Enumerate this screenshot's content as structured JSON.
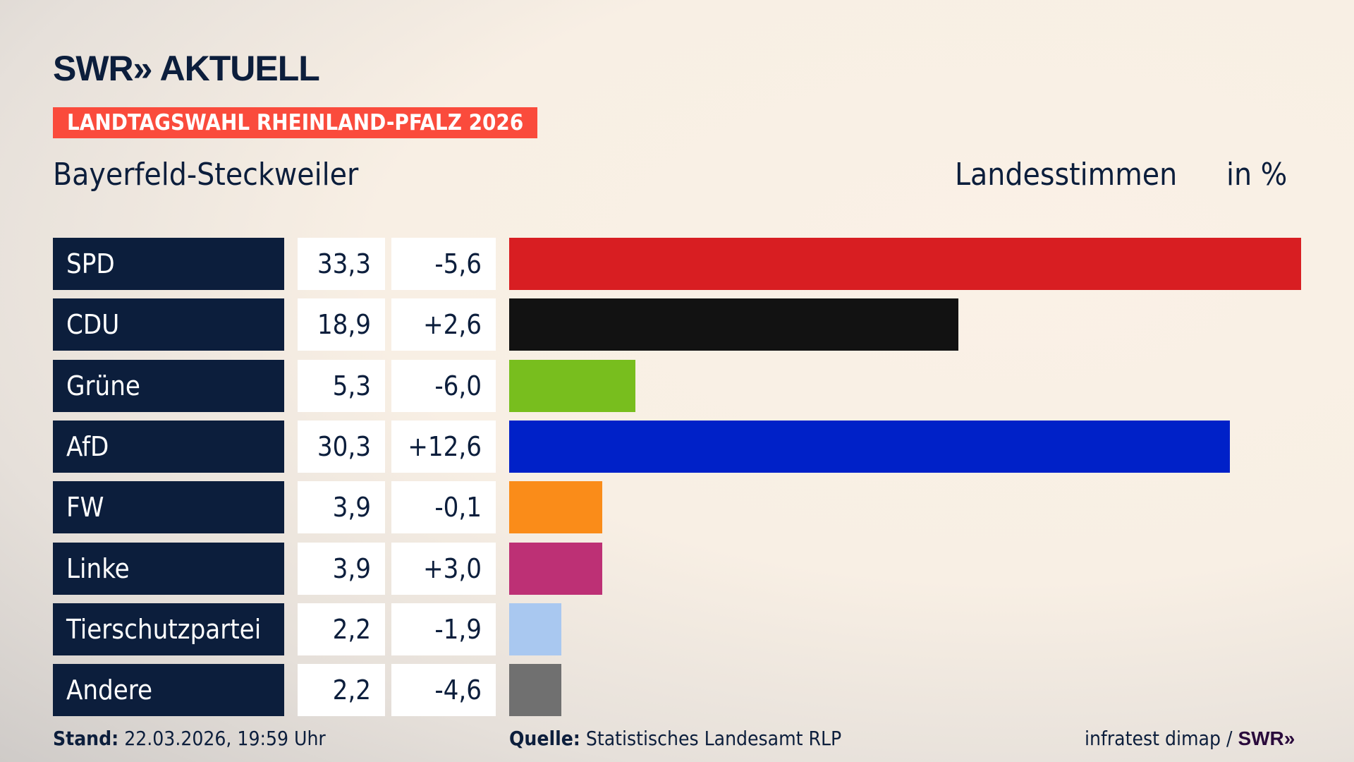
{
  "header": {
    "logo": "SWR» AKTUELL",
    "banner": "LANDTAGSWAHL RHEINLAND-PFALZ 2026",
    "place": "Bayerfeld-Steckweiler",
    "metric": "Landesstimmen",
    "unit": "in %"
  },
  "chart_data": {
    "type": "bar",
    "orientation": "horizontal",
    "xlim": [
      0,
      33.3
    ],
    "categories": [
      "SPD",
      "CDU",
      "Grüne",
      "AfD",
      "FW",
      "Linke",
      "Tierschutzpartei",
      "Andere"
    ],
    "values": [
      "33,3",
      "18,9",
      "5,3",
      "30,3",
      "3,9",
      "3,9",
      "2,2",
      "2,2"
    ],
    "numeric_values": [
      33.3,
      18.9,
      5.3,
      30.3,
      3.9,
      3.9,
      2.2,
      2.2
    ],
    "changes": [
      "-5,6",
      "+2,6",
      "-6,0",
      "+12,6",
      "-0,1",
      "+3,0",
      "-1,9",
      "-4,6"
    ],
    "colors": [
      "#d81e22",
      "#121212",
      "#78be1e",
      "#0021c8",
      "#fa8c19",
      "#bd3075",
      "#a9c8f0",
      "#707070"
    ]
  },
  "footer": {
    "stand_label": "Stand:",
    "stand_value": "22.03.2026, 19:59 Uhr",
    "source_label": "Quelle:",
    "source_value": "Statistisches Landesamt RLP",
    "credit": "infratest dimap /",
    "credit_logo": "SWR»"
  }
}
